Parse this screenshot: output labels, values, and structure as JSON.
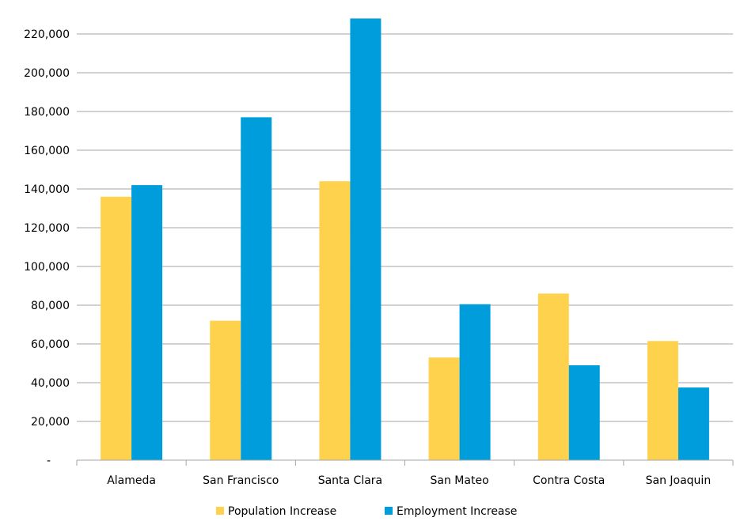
{
  "chart_data": {
    "type": "bar",
    "title": "",
    "xlabel": "",
    "ylabel": "",
    "categories": [
      "Alameda",
      "San Francisco",
      "Santa Clara",
      "San Mateo",
      "Contra Costa",
      "San Joaquin"
    ],
    "series": [
      {
        "name": "Population Increase",
        "color": "#ffd24d",
        "values": [
          136000,
          72000,
          144000,
          53000,
          86000,
          61500
        ]
      },
      {
        "name": "Employment Increase",
        "color": "#009ddc",
        "values": [
          142000,
          177000,
          228000,
          80500,
          49000,
          37500
        ]
      }
    ],
    "ylim": [
      0,
      220000
    ],
    "yticks": [
      {
        "value": 0,
        "label": "-"
      },
      {
        "value": 20000,
        "label": "20,000"
      },
      {
        "value": 40000,
        "label": "40,000"
      },
      {
        "value": 60000,
        "label": "60,000"
      },
      {
        "value": 80000,
        "label": "80,000"
      },
      {
        "value": 100000,
        "label": "100,000"
      },
      {
        "value": 120000,
        "label": "120,000"
      },
      {
        "value": 140000,
        "label": "140,000"
      },
      {
        "value": 160000,
        "label": "160,000"
      },
      {
        "value": 180000,
        "label": "180,000"
      },
      {
        "value": 200000,
        "label": "200,000"
      },
      {
        "value": 220000,
        "label": "220,000"
      }
    ],
    "grid": true,
    "legend_position": "bottom",
    "gridline_color": "#a6a6a6"
  }
}
